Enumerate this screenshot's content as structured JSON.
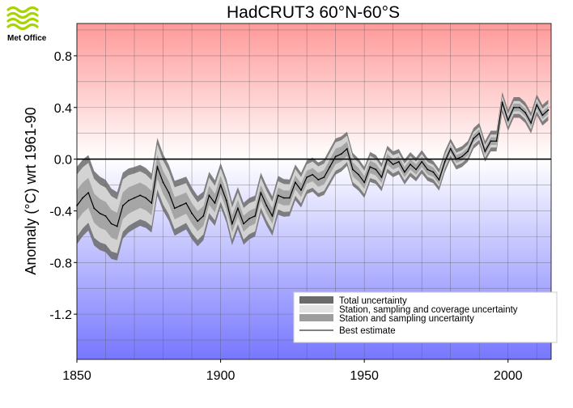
{
  "logo": {
    "text": "Met Office",
    "icon": "met-office-wave-logo",
    "color": "#a8d400"
  },
  "chart_data": {
    "type": "area",
    "title": "HadCRUT3 60°N-60°S",
    "xlabel": "",
    "ylabel": "Anomaly (°C) wrt 1961-90",
    "xlim": [
      1850,
      2015
    ],
    "ylim": [
      -1.55,
      1.05
    ],
    "x_ticks": [
      1850,
      1900,
      1950,
      2000
    ],
    "x_tick_labels": [
      "1850",
      "1900",
      "1950",
      "2000"
    ],
    "y_ticks": [
      0.8,
      0.4,
      0.0,
      -0.4,
      -0.8,
      -1.2
    ],
    "y_tick_labels": [
      "0.8",
      "0.4",
      "0.0",
      "-0.4",
      "-0.8",
      "-1.2"
    ],
    "x_gridlines": [
      1850,
      1860,
      1870,
      1880,
      1890,
      1900,
      1910,
      1920,
      1930,
      1940,
      1950,
      1960,
      1970,
      1980,
      1990,
      2000,
      2010
    ],
    "y_gridlines": [
      1.0,
      0.8,
      0.6,
      0.4,
      0.2,
      0.0,
      -0.2,
      -0.4,
      -0.6,
      -0.8,
      -1.0,
      -1.2,
      -1.4
    ],
    "grid": true,
    "zero_line": true,
    "background": {
      "top_color": "#ff9999",
      "mid_color": "#ffffff",
      "bottom_color": "#7777ff"
    },
    "legend": {
      "position": "bottom-right",
      "entries": [
        {
          "label": "Total uncertainty",
          "color": "#6b6b6b",
          "kind": "swatch"
        },
        {
          "label": "Station, sampling and coverage uncertainty",
          "color": "#e2e2e2",
          "kind": "swatch"
        },
        {
          "label": "Station and sampling uncertainty",
          "color": "#9e9e9e",
          "kind": "swatch"
        },
        {
          "label": "Best estimate",
          "color": "#000000",
          "kind": "line"
        }
      ]
    },
    "series": [
      {
        "name": "Best estimate",
        "x": [
          1850,
          1852,
          1854,
          1856,
          1858,
          1860,
          1862,
          1864,
          1866,
          1868,
          1870,
          1872,
          1874,
          1876,
          1878,
          1880,
          1882,
          1884,
          1886,
          1888,
          1890,
          1892,
          1894,
          1896,
          1898,
          1900,
          1902,
          1904,
          1906,
          1908,
          1910,
          1912,
          1914,
          1916,
          1918,
          1920,
          1922,
          1924,
          1926,
          1928,
          1930,
          1932,
          1934,
          1936,
          1938,
          1940,
          1942,
          1944,
          1946,
          1948,
          1950,
          1952,
          1954,
          1956,
          1958,
          1960,
          1962,
          1964,
          1966,
          1968,
          1970,
          1972,
          1974,
          1976,
          1978,
          1980,
          1982,
          1984,
          1986,
          1988,
          1990,
          1992,
          1994,
          1996,
          1998,
          2000,
          2002,
          2004,
          2006,
          2008,
          2010,
          2012,
          2014
        ],
        "y": [
          -0.36,
          -0.3,
          -0.26,
          -0.38,
          -0.42,
          -0.44,
          -0.5,
          -0.52,
          -0.36,
          -0.32,
          -0.3,
          -0.28,
          -0.3,
          -0.34,
          -0.06,
          -0.18,
          -0.26,
          -0.38,
          -0.36,
          -0.34,
          -0.42,
          -0.48,
          -0.44,
          -0.28,
          -0.34,
          -0.2,
          -0.32,
          -0.5,
          -0.38,
          -0.5,
          -0.46,
          -0.44,
          -0.26,
          -0.36,
          -0.44,
          -0.28,
          -0.3,
          -0.3,
          -0.18,
          -0.24,
          -0.14,
          -0.12,
          -0.16,
          -0.14,
          -0.06,
          0.02,
          0.04,
          0.08,
          -0.08,
          -0.12,
          -0.18,
          -0.06,
          -0.08,
          -0.14,
          0.0,
          -0.04,
          -0.02,
          -0.1,
          -0.04,
          -0.08,
          -0.02,
          -0.08,
          -0.1,
          -0.16,
          -0.02,
          0.08,
          0.0,
          0.02,
          0.06,
          0.16,
          0.2,
          0.06,
          0.14,
          0.14,
          0.44,
          0.3,
          0.4,
          0.4,
          0.36,
          0.28,
          0.42,
          0.34,
          0.38
        ]
      },
      {
        "name": "Total uncertainty",
        "x": [
          1850,
          1860,
          1870,
          1880,
          1890,
          1900,
          1910,
          1920,
          1930,
          1940,
          1950,
          1960,
          1970,
          1980,
          1990,
          2000,
          2010,
          2014
        ],
        "half_width": [
          0.3,
          0.28,
          0.24,
          0.22,
          0.2,
          0.17,
          0.16,
          0.15,
          0.13,
          0.14,
          0.12,
          0.1,
          0.09,
          0.08,
          0.08,
          0.08,
          0.08,
          0.08
        ]
      },
      {
        "name": "Station, sampling and coverage uncertainty",
        "x": [
          1850,
          1860,
          1870,
          1880,
          1890,
          1900,
          1910,
          1920,
          1930,
          1940,
          1950,
          1960,
          1970,
          1980,
          1990,
          2000,
          2010,
          2014
        ],
        "half_width": [
          0.24,
          0.22,
          0.19,
          0.17,
          0.15,
          0.13,
          0.12,
          0.11,
          0.1,
          0.11,
          0.09,
          0.07,
          0.06,
          0.05,
          0.05,
          0.05,
          0.05,
          0.05
        ]
      },
      {
        "name": "Station and sampling uncertainty",
        "x": [
          1850,
          1860,
          1870,
          1880,
          1890,
          1900,
          1910,
          1920,
          1930,
          1940,
          1950,
          1960,
          1970,
          1980,
          1990,
          2000,
          2010,
          2014
        ],
        "half_width": [
          0.12,
          0.11,
          0.1,
          0.09,
          0.08,
          0.07,
          0.06,
          0.06,
          0.05,
          0.06,
          0.05,
          0.04,
          0.04,
          0.03,
          0.03,
          0.03,
          0.03,
          0.03
        ]
      }
    ]
  }
}
